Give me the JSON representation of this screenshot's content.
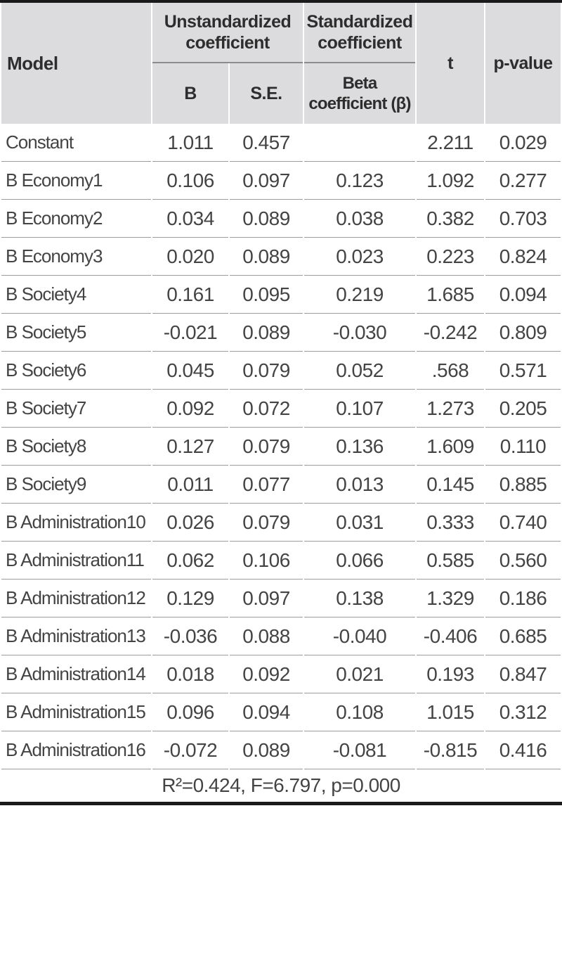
{
  "colors": {
    "header_bg": "#dcdcde",
    "rule_black": "#1a1a1a",
    "row_line": "#9c9c9c",
    "header_mid_rule": "#8c8c8c",
    "header_text": "#2d2d2d",
    "data_text": "#444444",
    "page_bg": "#ffffff"
  },
  "figure": {
    "header": {
      "model": "Model",
      "unstandardized_group": "Unstandardized coefficient",
      "standardized_group": "Standardized coefficient",
      "b": "B",
      "se": "S.E.",
      "beta_line1": "Beta",
      "beta_line2": "coefficient (β)",
      "t": "t",
      "p_value": "p-value"
    },
    "rows": [
      {
        "model": "Constant",
        "b": "1.011",
        "se": "0.457",
        "beta": "",
        "t": "2.211",
        "p": "0.029"
      },
      {
        "model": "B Economy1",
        "b": "0.106",
        "se": "0.097",
        "beta": "0.123",
        "t": "1.092",
        "p": "0.277"
      },
      {
        "model": "B Economy2",
        "b": "0.034",
        "se": "0.089",
        "beta": "0.038",
        "t": "0.382",
        "p": "0.703"
      },
      {
        "model": "B Economy3",
        "b": "0.020",
        "se": "0.089",
        "beta": "0.023",
        "t": "0.223",
        "p": "0.824"
      },
      {
        "model": "B Society4",
        "b": "0.161",
        "se": "0.095",
        "beta": "0.219",
        "t": "1.685",
        "p": "0.094"
      },
      {
        "model": "B Society5",
        "b": "-0.021",
        "se": "0.089",
        "beta": "-0.030",
        "t": "-0.242",
        "p": "0.809"
      },
      {
        "model": "B Society6",
        "b": "0.045",
        "se": "0.079",
        "beta": "0.052",
        "t": ".568",
        "p": "0.571"
      },
      {
        "model": "B Society7",
        "b": "0.092",
        "se": "0.072",
        "beta": "0.107",
        "t": "1.273",
        "p": "0.205"
      },
      {
        "model": "B Society8",
        "b": "0.127",
        "se": "0.079",
        "beta": "0.136",
        "t": "1.609",
        "p": "0.110"
      },
      {
        "model": "B Society9",
        "b": "0.011",
        "se": "0.077",
        "beta": "0.013",
        "t": "0.145",
        "p": "0.885"
      },
      {
        "model": "B Administration10",
        "b": "0.026",
        "se": "0.079",
        "beta": "0.031",
        "t": "0.333",
        "p": "0.740"
      },
      {
        "model": "B Administration11",
        "b": "0.062",
        "se": "0.106",
        "beta": "0.066",
        "t": "0.585",
        "p": "0.560"
      },
      {
        "model": "B Administration12",
        "b": "0.129",
        "se": "0.097",
        "beta": "0.138",
        "t": "1.329",
        "p": "0.186"
      },
      {
        "model": "B Administration13",
        "b": "-0.036",
        "se": "0.088",
        "beta": "-0.040",
        "t": "-0.406",
        "p": "0.685"
      },
      {
        "model": "B Administration14",
        "b": "0.018",
        "se": "0.092",
        "beta": "0.021",
        "t": "0.193",
        "p": "0.847"
      },
      {
        "model": "B Administration15",
        "b": "0.096",
        "se": "0.094",
        "beta": "0.108",
        "t": "1.015",
        "p": "0.312"
      },
      {
        "model": "B Administration16",
        "b": "-0.072",
        "se": "0.089",
        "beta": "-0.081",
        "t": "-0.815",
        "p": "0.416"
      }
    ],
    "footer_stats": "R²=0.424, F=6.797, p=0.000"
  }
}
